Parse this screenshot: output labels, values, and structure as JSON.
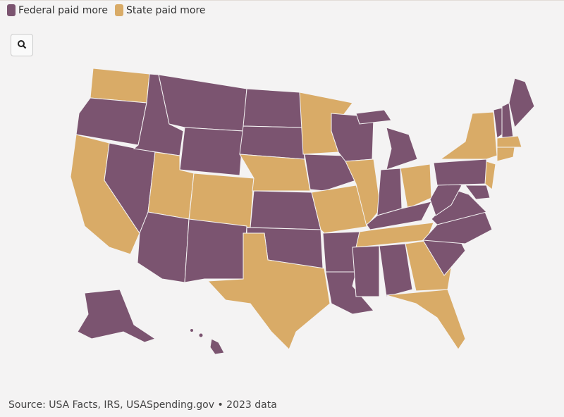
{
  "legend": [
    {
      "label": "Federal paid more",
      "color": "#7b5470"
    },
    {
      "label": "State paid more",
      "color": "#d9ab67"
    }
  ],
  "source": "Source: USA Facts, IRS, USASpending.gov • 2023 data"
}
